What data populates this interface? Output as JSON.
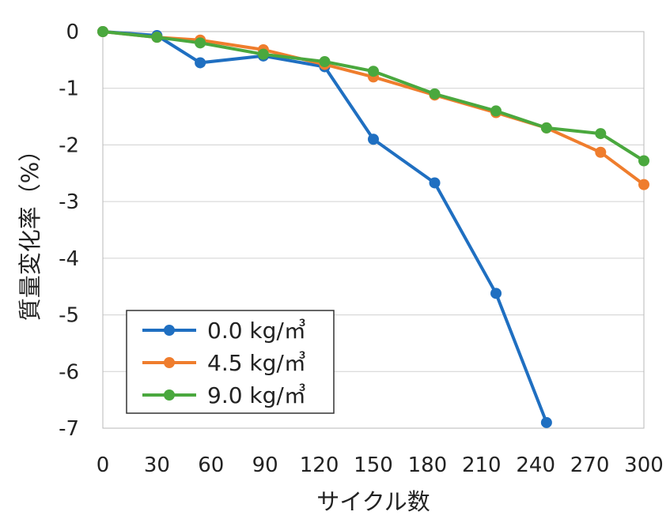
{
  "chart_data": {
    "type": "line",
    "xlabel": "サイクル数",
    "ylabel": "質量変化率（%）",
    "xlim": [
      0,
      300
    ],
    "ylim": [
      -7,
      0
    ],
    "x_ticks": [
      "0",
      "30",
      "60",
      "90",
      "120",
      "150",
      "180",
      "210",
      "240",
      "270",
      "300"
    ],
    "y_ticks": [
      "0",
      "-1",
      "-2",
      "-3",
      "-4",
      "-5",
      "-6",
      "-7"
    ],
    "grid": true,
    "legend_position": "bottom-left",
    "series": [
      {
        "name": "0.0 kg/㎥",
        "color": "#1f6fc1",
        "points": [
          [
            0,
            0
          ],
          [
            30,
            -0.07
          ],
          [
            54,
            -0.55
          ],
          [
            89,
            -0.43
          ],
          [
            123,
            -0.62
          ],
          [
            150,
            -1.9
          ],
          [
            184,
            -2.67
          ],
          [
            218,
            -4.62
          ],
          [
            246,
            -6.9
          ]
        ]
      },
      {
        "name": "4.5 kg/㎥",
        "color": "#ef7d2d",
        "points": [
          [
            0,
            0
          ],
          [
            30,
            -0.1
          ],
          [
            54,
            -0.15
          ],
          [
            89,
            -0.32
          ],
          [
            123,
            -0.58
          ],
          [
            150,
            -0.8
          ],
          [
            184,
            -1.12
          ],
          [
            218,
            -1.43
          ],
          [
            246,
            -1.7
          ],
          [
            276,
            -2.13
          ],
          [
            300,
            -2.7
          ]
        ]
      },
      {
        "name": "9.0 kg/㎥",
        "color": "#4aa83e",
        "points": [
          [
            0,
            0
          ],
          [
            30,
            -0.1
          ],
          [
            54,
            -0.2
          ],
          [
            89,
            -0.4
          ],
          [
            123,
            -0.53
          ],
          [
            150,
            -0.7
          ],
          [
            184,
            -1.1
          ],
          [
            218,
            -1.4
          ],
          [
            246,
            -1.7
          ],
          [
            276,
            -1.8
          ],
          [
            300,
            -2.28
          ]
        ]
      }
    ]
  }
}
